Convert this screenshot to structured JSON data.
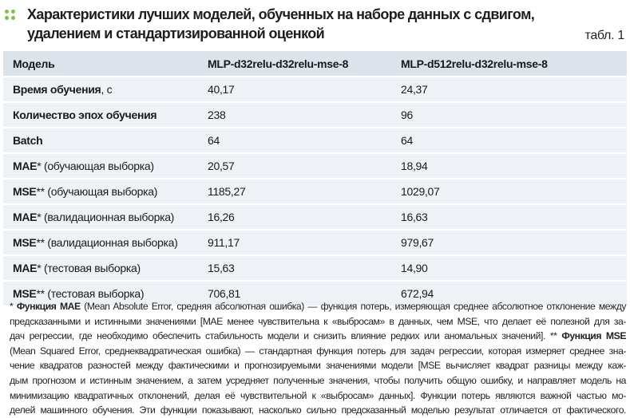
{
  "title": {
    "line1": "Характеристики лучших моделей, обученных на наборе данных с сдвигом,",
    "line2": "удалением и стандартизированной оценкой",
    "table_number": "табл. 1",
    "accent_color": "#7dc242"
  },
  "table": {
    "headers": [
      "Модель",
      "MLP-d32relu-d32relu-mse-8",
      "MLP-d512relu-d32relu-mse-8"
    ],
    "rows": [
      {
        "label_bold": "Время обучения",
        "label_rest": ", с",
        "v1": "40,17",
        "v2": "24,37"
      },
      {
        "label_bold": "Количество эпох обучения",
        "label_rest": "",
        "v1": "238",
        "v2": "96"
      },
      {
        "label_bold": "Batch",
        "label_rest": "",
        "v1": "64",
        "v2": "64"
      },
      {
        "label_bold": "MAE",
        "label_rest": "* (обучающая выборка)",
        "v1": "20,57",
        "v2": "18,94"
      },
      {
        "label_bold": "MSE",
        "label_rest": "** (обучающая выборка)",
        "v1": "1185,27",
        "v2": "1029,07"
      },
      {
        "label_bold": "MAE",
        "label_rest": "* (валидационная выборка)",
        "v1": "16,26",
        "v2": "16,63"
      },
      {
        "label_bold": "MSE",
        "label_rest": "** (валидационная выборка)",
        "v1": "911,17",
        "v2": "979,67"
      },
      {
        "label_bold": "MAE",
        "label_rest": "* (тестовая выборка)",
        "v1": "15,63",
        "v2": "14,90"
      },
      {
        "label_bold": "MSE",
        "label_rest": "** (тестовая выборка)",
        "v1": "706,81",
        "v2": "672,94"
      }
    ]
  },
  "footnote": {
    "l1_pre": "* ",
    "l1_bold": "Функция MAE",
    "l1_rest": " (Mean Absolute Error, средняя абсолютная ошибка) — функция потерь, измеряющая среднее абсолютное отклонение между",
    "l2": "предсказанными и истинными значениями [MAE менее чувствительна к «выбросам» в данных, чем MSE, что делает её полезной для за-",
    "l3_pre": "дач регрессии, где необходимо обеспечить стабильность модели и снизить влияние редких или аномальных значений].  ** ",
    "l3_bold": "Функция MSE",
    "l4": "(Mean Squared Error, среднеквадратическая ошибка) — стандартная функция потерь для задач регрессии, которая измеряет среднее зна-",
    "l5": "чение квадратов разностей между фактическими и прогнозируемыми значениями модели [MSE вычисляет квадрат разницы между каж-",
    "l6": "дым прогнозом и истинным значением, а затем усредняет полученные значения, чтобы получить общую ошибку, и направляет модель на",
    "l7": "минимизацию квадратичных отклонений, делая её чувствительной к «выбросам» данных]. Функции потерь являются важной частью мо-",
    "l8": "делей машинного обучения. Эти функции показывают, насколько сильно предсказанный моделью результат отличается от фактического."
  }
}
